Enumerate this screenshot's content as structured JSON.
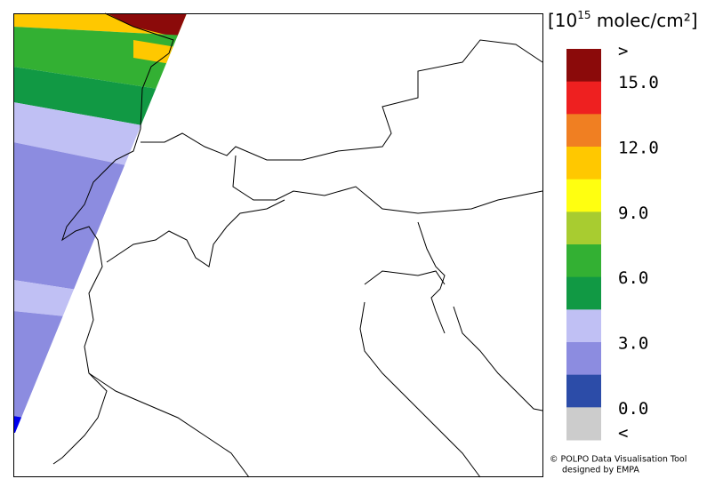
{
  "legend": {
    "unit_prefix": "[10",
    "unit_exponent": "15",
    "unit_suffix": " molec/cm²]",
    "over_label": ">",
    "under_label": "<",
    "lim": [
      0,
      15
    ],
    "colors": [
      "#8b0a0a",
      "#ee2020",
      "#f07f22",
      "#ffc800",
      "#ffff10",
      "#a8cc30",
      "#33b033",
      "#119944",
      "#c0c0f4",
      "#8c8ce0",
      "#2c4ca8",
      "#cccccc"
    ],
    "ticks": [
      {
        "value": 15,
        "label": "15.0"
      },
      {
        "value": 12,
        "label": "12.0"
      },
      {
        "value": 9,
        "label": "9.0"
      },
      {
        "value": 6,
        "label": "6.0"
      },
      {
        "value": 3,
        "label": "3.0"
      },
      {
        "value": 0,
        "label": "0.0"
      }
    ]
  },
  "credits": {
    "line1": "© POLPO Data Visualisation Tool",
    "line2": "designed by EMPA"
  }
}
